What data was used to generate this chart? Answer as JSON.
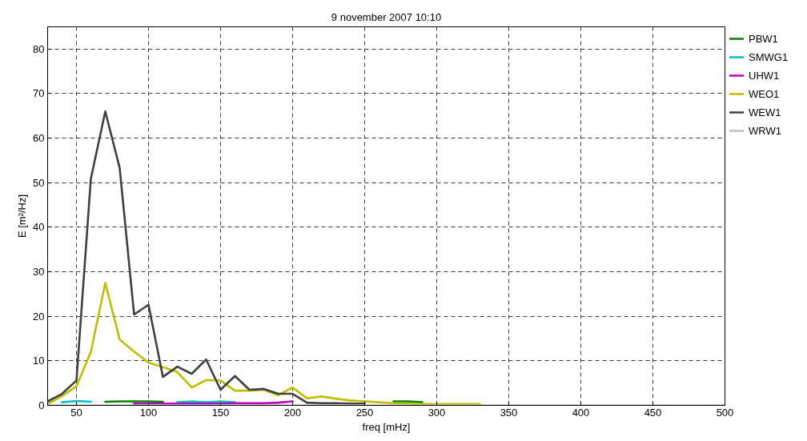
{
  "chart_data": {
    "type": "line",
    "title": "9 november 2007 10:10",
    "xlabel": "freq [mHz]",
    "ylabel": "E [m²/Hz]",
    "x": [
      30,
      40,
      50,
      60,
      70,
      80,
      90,
      100,
      110,
      120,
      130,
      140,
      150,
      160,
      170,
      180,
      190,
      200,
      210,
      220,
      230,
      240,
      250,
      260,
      270,
      280,
      290,
      300,
      310,
      320,
      330,
      340,
      350,
      360,
      370,
      380,
      390,
      400,
      410,
      420,
      430,
      440,
      450,
      460,
      470,
      480,
      490,
      500
    ],
    "series": [
      {
        "name": "PBW1",
        "color": "#008000",
        "values": [
          null,
          null,
          null,
          null,
          0.8,
          0.9,
          0.9,
          0.9,
          0.8,
          null,
          null,
          null,
          null,
          null,
          null,
          null,
          null,
          null,
          null,
          null,
          null,
          null,
          null,
          null,
          0.9,
          0.9,
          0.7,
          null,
          null,
          null,
          null,
          null,
          null,
          null,
          null,
          null,
          null,
          null,
          null,
          null,
          null,
          null,
          null,
          null,
          null,
          null,
          null,
          null
        ]
      },
      {
        "name": "SMWG1",
        "color": "#00bfbf",
        "values": [
          null,
          0.7,
          1.0,
          0.8,
          null,
          null,
          null,
          null,
          null,
          0.7,
          0.9,
          0.7,
          0.9,
          0.7,
          null,
          null,
          null,
          null,
          null,
          null,
          null,
          null,
          null,
          null,
          null,
          null,
          null,
          null,
          null,
          null,
          null,
          null,
          null,
          null,
          null,
          null,
          null,
          null,
          null,
          null,
          null,
          null,
          null,
          null,
          null,
          null,
          null,
          null
        ]
      },
      {
        "name": "UHW1",
        "color": "#bf00bf",
        "values": [
          null,
          null,
          null,
          null,
          null,
          null,
          0.4,
          0.4,
          0.4,
          0.4,
          0.4,
          0.4,
          0.4,
          0.5,
          0.5,
          0.5,
          0.6,
          0.9,
          null,
          null,
          null,
          null,
          null,
          null,
          null,
          null,
          null,
          null,
          null,
          null,
          null,
          null,
          null,
          null,
          null,
          null,
          null,
          null,
          null,
          null,
          null,
          null,
          null,
          null,
          null,
          null,
          null,
          null
        ]
      },
      {
        "name": "WEO1",
        "color": "#bfbf00",
        "values": [
          0.3,
          2.1,
          4.3,
          12.0,
          27.5,
          14.8,
          12.1,
          9.6,
          8.6,
          7.5,
          4.0,
          5.7,
          5.6,
          3.3,
          3.3,
          3.5,
          2.3,
          4.0,
          1.6,
          2.0,
          1.5,
          1.1,
          0.9,
          0.7,
          0.5,
          0.4,
          0.3,
          0.3,
          0.3,
          0.3,
          0.3,
          null,
          null,
          null,
          null,
          null,
          null,
          null,
          null,
          null,
          null,
          null,
          null,
          null,
          null,
          null,
          null,
          null
        ]
      },
      {
        "name": "WEW1",
        "color": "#404040",
        "values": [
          0.9,
          2.6,
          5.6,
          50.9,
          66.0,
          53.3,
          20.4,
          22.6,
          6.4,
          8.7,
          7.1,
          10.3,
          3.5,
          6.6,
          3.5,
          3.7,
          2.6,
          2.6,
          0.6,
          0.5,
          0.5,
          0.4,
          0.4,
          null,
          null,
          null,
          null,
          null,
          null,
          null,
          null,
          null,
          null,
          null,
          null,
          null,
          null,
          null,
          null,
          null,
          null,
          null,
          null,
          null,
          null,
          null,
          null,
          null
        ]
      },
      {
        "name": "WRW1",
        "color": "#c0c0c0",
        "values": [
          0,
          0,
          0,
          0,
          0,
          0,
          0,
          0,
          0,
          0,
          0,
          0,
          0,
          0,
          0,
          0,
          0,
          0,
          0,
          0,
          0,
          0,
          0,
          0,
          0,
          0,
          0,
          0,
          0,
          0,
          0,
          0,
          0,
          0,
          0,
          0,
          0,
          0,
          0,
          0,
          0,
          0,
          0,
          0,
          0,
          0,
          0,
          0
        ]
      }
    ],
    "xlim": [
      30,
      500
    ],
    "ylim": [
      0,
      85
    ],
    "xticks": [
      50,
      100,
      150,
      200,
      250,
      300,
      350,
      400,
      450,
      500
    ],
    "yticks": [
      0,
      10,
      20,
      30,
      40,
      50,
      60,
      70,
      80
    ],
    "grid": true,
    "legend": "top right"
  }
}
